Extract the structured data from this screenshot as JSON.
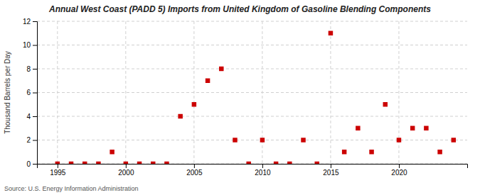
{
  "chart_data": {
    "type": "scatter",
    "title": "Annual West Coast (PADD 5) Imports from United Kingdom of Gasoline Blending Components",
    "ylabel": "Thousand Barrels per Day",
    "annotations": [
      "Source: U.S. Energy Information Administration"
    ],
    "x": [
      1995,
      1996,
      1997,
      1998,
      1999,
      2000,
      2001,
      2002,
      2003,
      2004,
      2005,
      2006,
      2007,
      2008,
      2009,
      2010,
      2011,
      2012,
      2013,
      2014,
      2015,
      2016,
      2017,
      2018,
      2019,
      2020,
      2021,
      2022,
      2023,
      2024
    ],
    "values": [
      0,
      0,
      0,
      0,
      1,
      0,
      0,
      0,
      0,
      4,
      5,
      7,
      8,
      2,
      0,
      2,
      0,
      0,
      2,
      0,
      11,
      1,
      3,
      1,
      5,
      2,
      3,
      3,
      1,
      2
    ],
    "color": "#cc0000",
    "marker": "square",
    "xlim": [
      1993.5,
      2025
    ],
    "xticks": [
      1995,
      2000,
      2005,
      2010,
      2015,
      2020
    ],
    "ylim": [
      0,
      12
    ],
    "yticks": [
      0,
      2,
      4,
      6,
      8,
      10,
      12
    ],
    "grid": true
  }
}
